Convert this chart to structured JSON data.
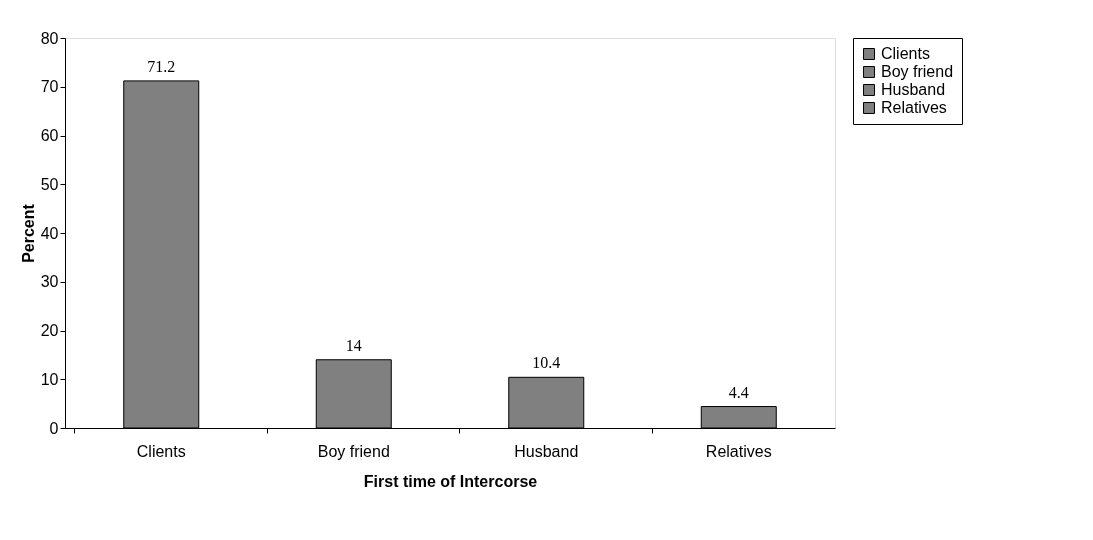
{
  "chart_data": {
    "type": "bar",
    "xlabel": "First time of Intercorse",
    "ylabel": "Percent",
    "categories": [
      "Clients",
      "Boy friend",
      "Husband",
      "Relatives"
    ],
    "series": [
      {
        "name": "Clients",
        "color": "#808080",
        "values": [
          71.2,
          null,
          null,
          null
        ]
      },
      {
        "name": "Boy friend",
        "color": "#808080",
        "values": [
          null,
          14,
          null,
          null
        ]
      },
      {
        "name": "Husband",
        "color": "#808080",
        "values": [
          null,
          null,
          10.4,
          null
        ]
      },
      {
        "name": "Relatives",
        "color": "#808080",
        "values": [
          null,
          null,
          null,
          4.4
        ]
      }
    ],
    "ylim": [
      0,
      80
    ],
    "yticks": [
      0,
      10,
      20,
      30,
      40,
      50,
      60,
      70,
      80
    ],
    "data_labels": true,
    "grid": false,
    "legend": "top right"
  }
}
